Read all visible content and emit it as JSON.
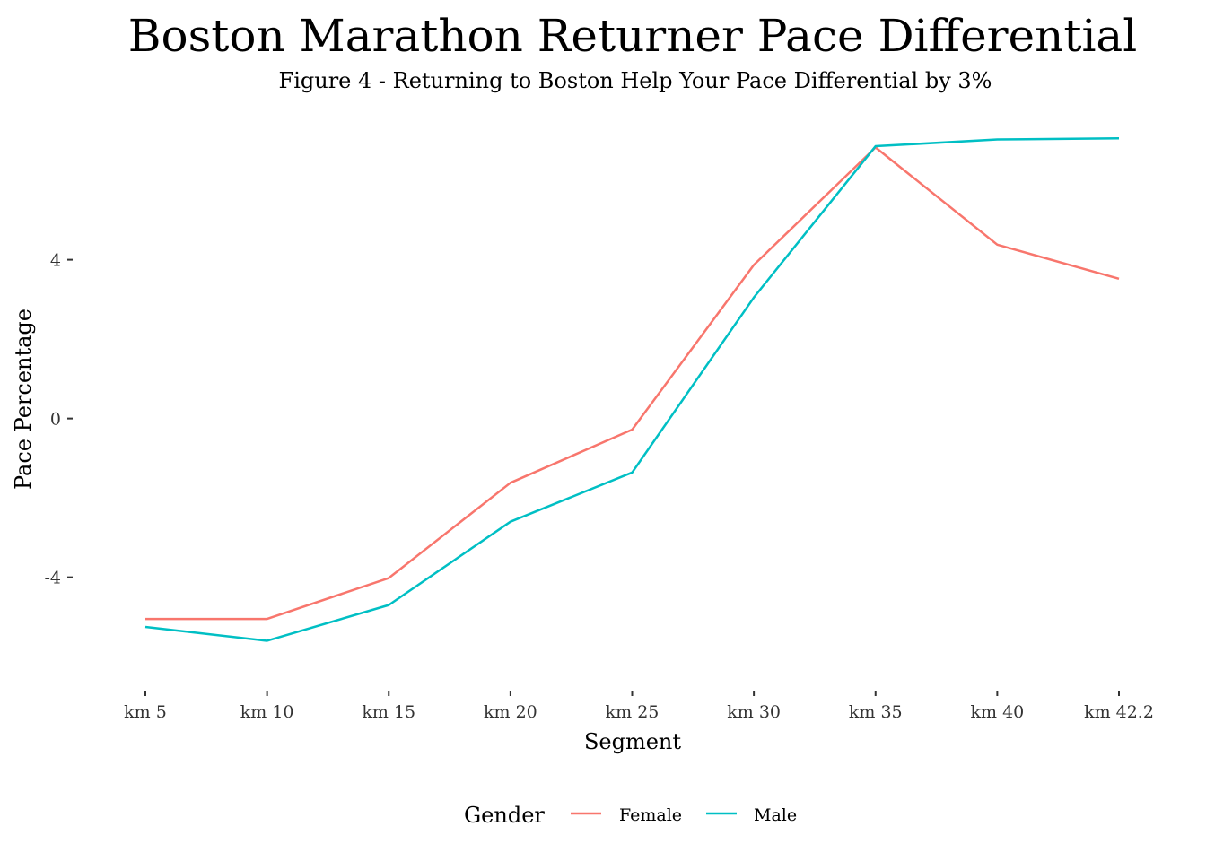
{
  "chart_data": {
    "type": "line",
    "title": "Boston Marathon Returner Pace Differential",
    "subtitle": "Figure 4 - Returning to Boston Help Your Pace Differential by 3%",
    "xlabel": "Segment",
    "ylabel": "Pace Percentage",
    "categories": [
      "km 5",
      "km 10",
      "km 15",
      "km 20",
      "km 25",
      "km 30",
      "km 35",
      "km 40",
      "km 42.2"
    ],
    "y_ticks": [
      -4,
      0,
      4
    ],
    "y_tick_labels": [
      "-4",
      "0",
      "4"
    ],
    "ylim": [
      -6.2,
      7.2
    ],
    "grid": false,
    "legend": {
      "title": "Gender",
      "position": "bottom"
    },
    "series": [
      {
        "name": "Female",
        "color": "#F8766D",
        "values": [
          -5.05,
          -5.05,
          -4.02,
          -1.62,
          -0.28,
          3.87,
          6.83,
          4.38,
          3.52
        ]
      },
      {
        "name": "Male",
        "color": "#00BFC4",
        "values": [
          -5.25,
          -5.6,
          -4.7,
          -2.6,
          -1.36,
          3.05,
          6.86,
          7.03,
          7.06
        ]
      }
    ]
  }
}
